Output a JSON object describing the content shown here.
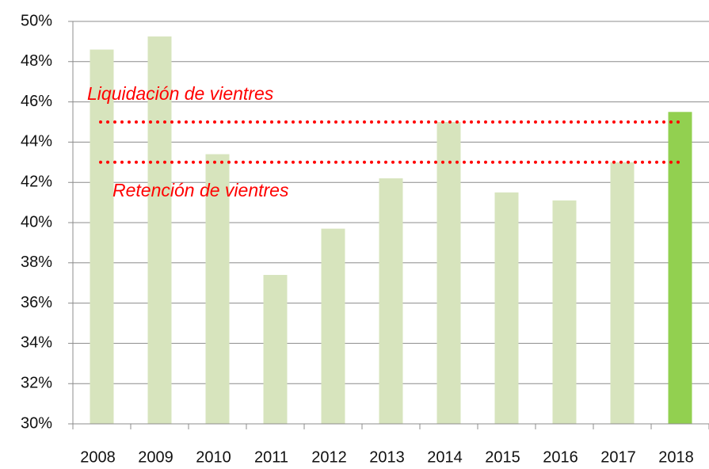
{
  "chart_data": {
    "type": "bar",
    "categories": [
      "2008",
      "2009",
      "2010",
      "2011",
      "2012",
      "2013",
      "2014",
      "2015",
      "2016",
      "2017",
      "2018"
    ],
    "values": [
      48.6,
      49.25,
      43.4,
      37.4,
      39.7,
      42.2,
      45.0,
      41.5,
      41.1,
      43.0,
      45.5
    ],
    "colors": [
      "#d7e4bd",
      "#d7e4bd",
      "#d7e4bd",
      "#d7e4bd",
      "#d7e4bd",
      "#d7e4bd",
      "#d7e4bd",
      "#d7e4bd",
      "#d7e4bd",
      "#d7e4bd",
      "#92d050"
    ],
    "ylim": [
      30,
      50
    ],
    "yticks": [
      {
        "value": 30,
        "label": "30%"
      },
      {
        "value": 32,
        "label": "32%"
      },
      {
        "value": 34,
        "label": "34%"
      },
      {
        "value": 36,
        "label": "36%"
      },
      {
        "value": 38,
        "label": "38%"
      },
      {
        "value": 40,
        "label": "40%"
      },
      {
        "value": 42,
        "label": "42%"
      },
      {
        "value": 44,
        "label": "44%"
      },
      {
        "value": 46,
        "label": "46%"
      },
      {
        "value": 48,
        "label": "48%"
      },
      {
        "value": 50,
        "label": "50%"
      }
    ],
    "grid": true,
    "reference_lines": [
      {
        "value": 45,
        "label": "Liquidación de vientres",
        "color": "#ff0000"
      },
      {
        "value": 43,
        "label": "Retención de vientres",
        "color": "#ff0000"
      }
    ]
  }
}
